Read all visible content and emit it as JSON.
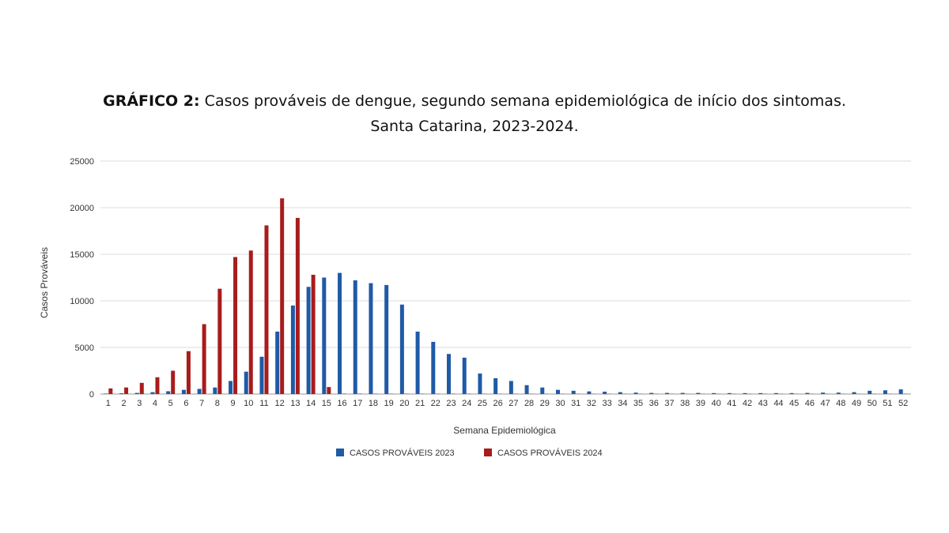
{
  "title": {
    "bold": "GRÁFICO 2:",
    "text": "Casos prováveis de dengue, segundo semana epidemiológica de início dos sintomas.",
    "line2": "Santa Catarina, 2023-2024."
  },
  "chart_data": {
    "type": "bar",
    "xlabel": "Semana Epidemiológica",
    "ylabel": "Casos Prováveis",
    "ylim": [
      0,
      25000
    ],
    "yticks": [
      0,
      5000,
      10000,
      15000,
      20000,
      25000
    ],
    "grid": true,
    "legend_position": "bottom",
    "categories": [
      "1",
      "2",
      "3",
      "4",
      "5",
      "6",
      "7",
      "8",
      "9",
      "10",
      "11",
      "12",
      "13",
      "14",
      "15",
      "16",
      "17",
      "18",
      "19",
      "20",
      "21",
      "22",
      "23",
      "24",
      "25",
      "26",
      "27",
      "28",
      "29",
      "30",
      "31",
      "32",
      "33",
      "34",
      "35",
      "36",
      "37",
      "38",
      "39",
      "40",
      "41",
      "42",
      "43",
      "44",
      "45",
      "46",
      "47",
      "48",
      "49",
      "50",
      "51",
      "52"
    ],
    "series": [
      {
        "name": "CASOS PROVÁVEIS 2023",
        "color": "#1f5aa6",
        "values": [
          50,
          80,
          120,
          200,
          300,
          450,
          550,
          700,
          1400,
          2400,
          4000,
          6700,
          9500,
          11500,
          12500,
          13000,
          12200,
          11900,
          11700,
          9600,
          6700,
          5600,
          4300,
          3900,
          2200,
          1700,
          1400,
          950,
          700,
          450,
          350,
          280,
          250,
          200,
          150,
          120,
          120,
          120,
          120,
          100,
          100,
          100,
          100,
          100,
          100,
          120,
          150,
          150,
          200,
          350,
          400,
          500
        ]
      },
      {
        "name": "CASOS PROVÁVEIS 2024",
        "color": "#a81c1c",
        "values": [
          600,
          700,
          1200,
          1800,
          2500,
          4600,
          7500,
          11300,
          14700,
          15400,
          18100,
          21000,
          18900,
          12800,
          750,
          40,
          40,
          30,
          30,
          30,
          30,
          30,
          30,
          30,
          20,
          20,
          20,
          20,
          20,
          20,
          20,
          20,
          20,
          20,
          20,
          20,
          20,
          20,
          20,
          20,
          20,
          20,
          20,
          20,
          20,
          20,
          20,
          20,
          20,
          20,
          20,
          20
        ]
      }
    ]
  }
}
